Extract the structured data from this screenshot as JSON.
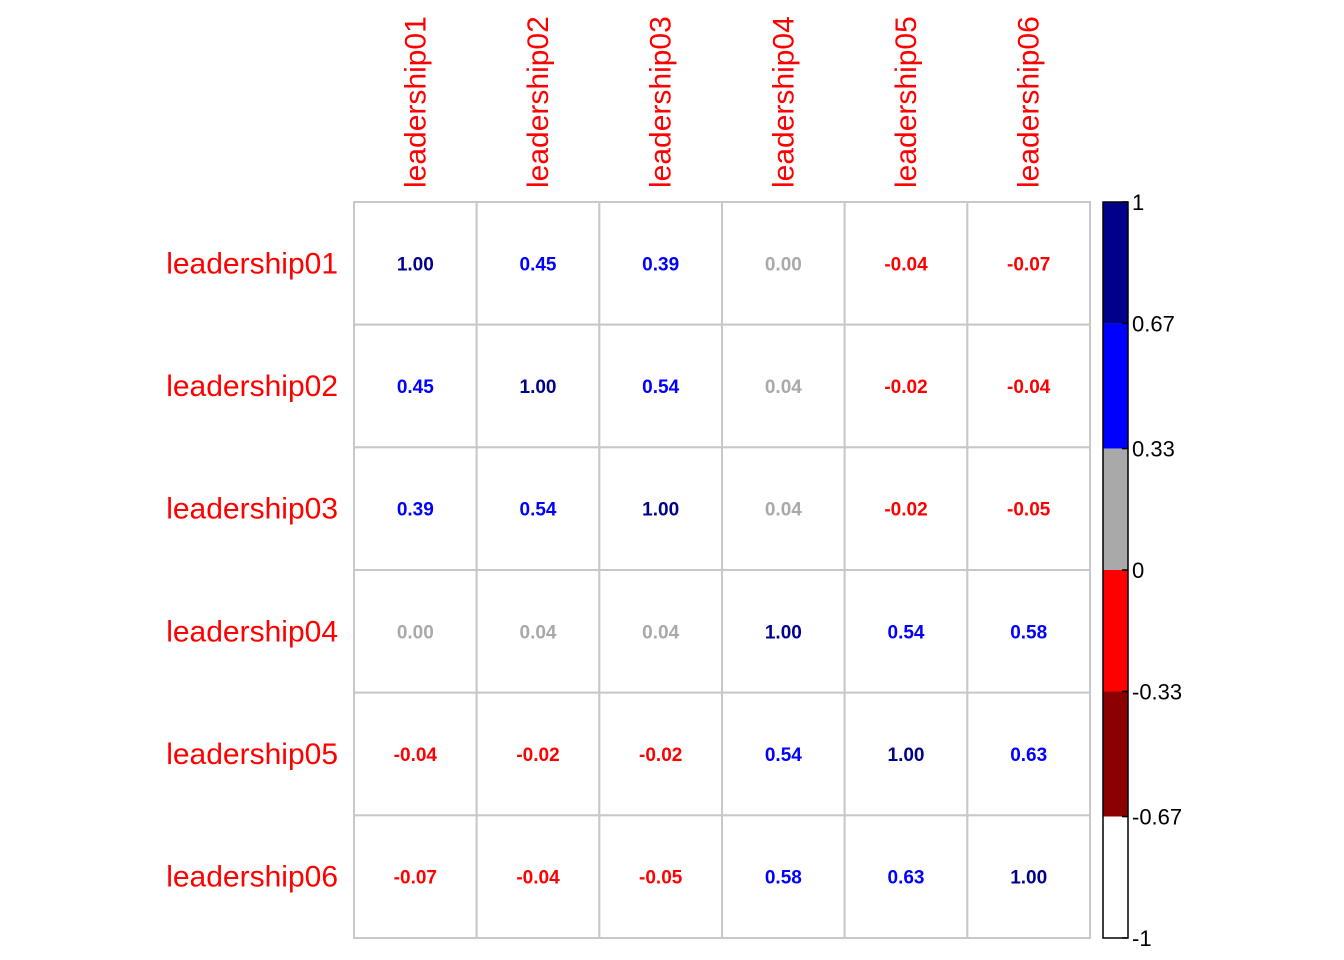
{
  "chart_data": {
    "type": "heatmap",
    "variables": [
      "leadership01",
      "leadership02",
      "leadership03",
      "leadership04",
      "leadership05",
      "leadership06"
    ],
    "matrix": [
      [
        1.0,
        0.45,
        0.39,
        0.0,
        -0.04,
        -0.07
      ],
      [
        0.45,
        1.0,
        0.54,
        0.04,
        -0.02,
        -0.04
      ],
      [
        0.39,
        0.54,
        1.0,
        0.04,
        -0.02,
        -0.05
      ],
      [
        0.0,
        0.04,
        0.04,
        1.0,
        0.54,
        0.58
      ],
      [
        -0.04,
        -0.02,
        -0.02,
        0.54,
        1.0,
        0.63
      ],
      [
        -0.07,
        -0.04,
        -0.05,
        0.58,
        0.63,
        1.0
      ]
    ],
    "labels": [
      [
        "1.00",
        "0.45",
        "0.39",
        "0.00",
        "-0.04",
        "-0.07"
      ],
      [
        "0.45",
        "1.00",
        "0.54",
        "0.04",
        "-0.02",
        "-0.04"
      ],
      [
        "0.39",
        "0.54",
        "1.00",
        "0.04",
        "-0.02",
        "-0.05"
      ],
      [
        "0.00",
        "0.04",
        "0.04",
        "1.00",
        "0.54",
        "0.58"
      ],
      [
        "-0.04",
        "-0.02",
        "-0.02",
        "0.54",
        "1.00",
        "0.63"
      ],
      [
        "-0.07",
        "-0.04",
        "-0.05",
        "0.58",
        "0.63",
        "1.00"
      ]
    ],
    "label_color": "#ff0000",
    "grid_color": "#c8c8c8",
    "colorbar": {
      "range": [
        -1,
        1
      ],
      "ticks": [
        1,
        0.67,
        0.33,
        0,
        -0.33,
        -0.67,
        -1
      ],
      "tick_labels": [
        "1",
        "0.67",
        "0.33",
        "0",
        "-0.33",
        "-0.67",
        "-1"
      ],
      "bins": [
        {
          "from": 0.67,
          "to": 1,
          "color": "#00008b"
        },
        {
          "from": 0.33,
          "to": 0.67,
          "color": "#0000ff"
        },
        {
          "from": 0,
          "to": 0.33,
          "color": "#a9a9a9"
        },
        {
          "from": -0.33,
          "to": 0,
          "color": "#ff0000"
        },
        {
          "from": -0.67,
          "to": -0.33,
          "color": "#8b0000"
        },
        {
          "from": -1,
          "to": -0.67,
          "color": "#ffffff"
        }
      ]
    }
  }
}
